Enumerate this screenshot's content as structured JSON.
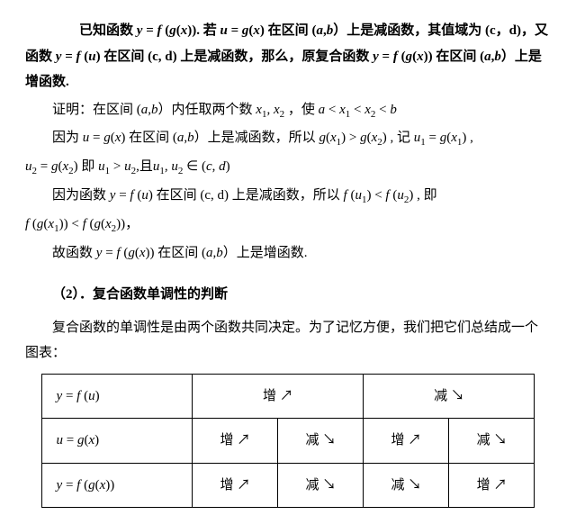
{
  "p1": "已知函数 y = f (g(x)) . 若 u = g(x) 在区间 (a, b ）上是减函数，其值域为 (c，d) ，又函数 y = f (u) 在区间 (c, d) 上是减函数，那么，原复合函数 y = f (g(x)) 在区间 (a, b ）上是增函数.",
  "p2": "证明：在区间 (a, b ）内任取两个数 x₁, x₂ ，使 a < x₁ < x₂ < b",
  "p3": "因为 u = g(x) 在区间 (a, b ）上是减函数，所以 g(x₁) > g(x₂) , 记 u₁ = g(x₁) ,",
  "p4": "u₂ = g(x₂) 即 u₁ > u₂,且 u₁, u₂ ∈ (c, d)",
  "p5": "因为函数 y = f (u) 在区间 (c, d) 上是减函数，所以 f (u₁) < f (u₂) , 即",
  "p6": "f (g(x₁)) < f (g(x₂)) ，",
  "p7": "故函数 y = f (g(x)) 在区间 (a, b ）上是增函数.",
  "section": "（2）．复合函数单调性的判断",
  "intro": "复合函数的单调性是由两个函数共同决定。为了记忆方便，我们把它们总结成一个图表：",
  "table": {
    "rows": [
      {
        "head": "y = f (u)",
        "cells": [
          "增 ↗",
          "减 ↘"
        ],
        "span": 2
      },
      {
        "head": "u = g(x)",
        "cells": [
          "增 ↗",
          "减 ↘",
          "增 ↗",
          "减 ↘"
        ]
      },
      {
        "head": "y = f (g(x))",
        "cells": [
          "增 ↗",
          "减 ↘",
          "减 ↘",
          "增 ↗"
        ]
      }
    ]
  }
}
